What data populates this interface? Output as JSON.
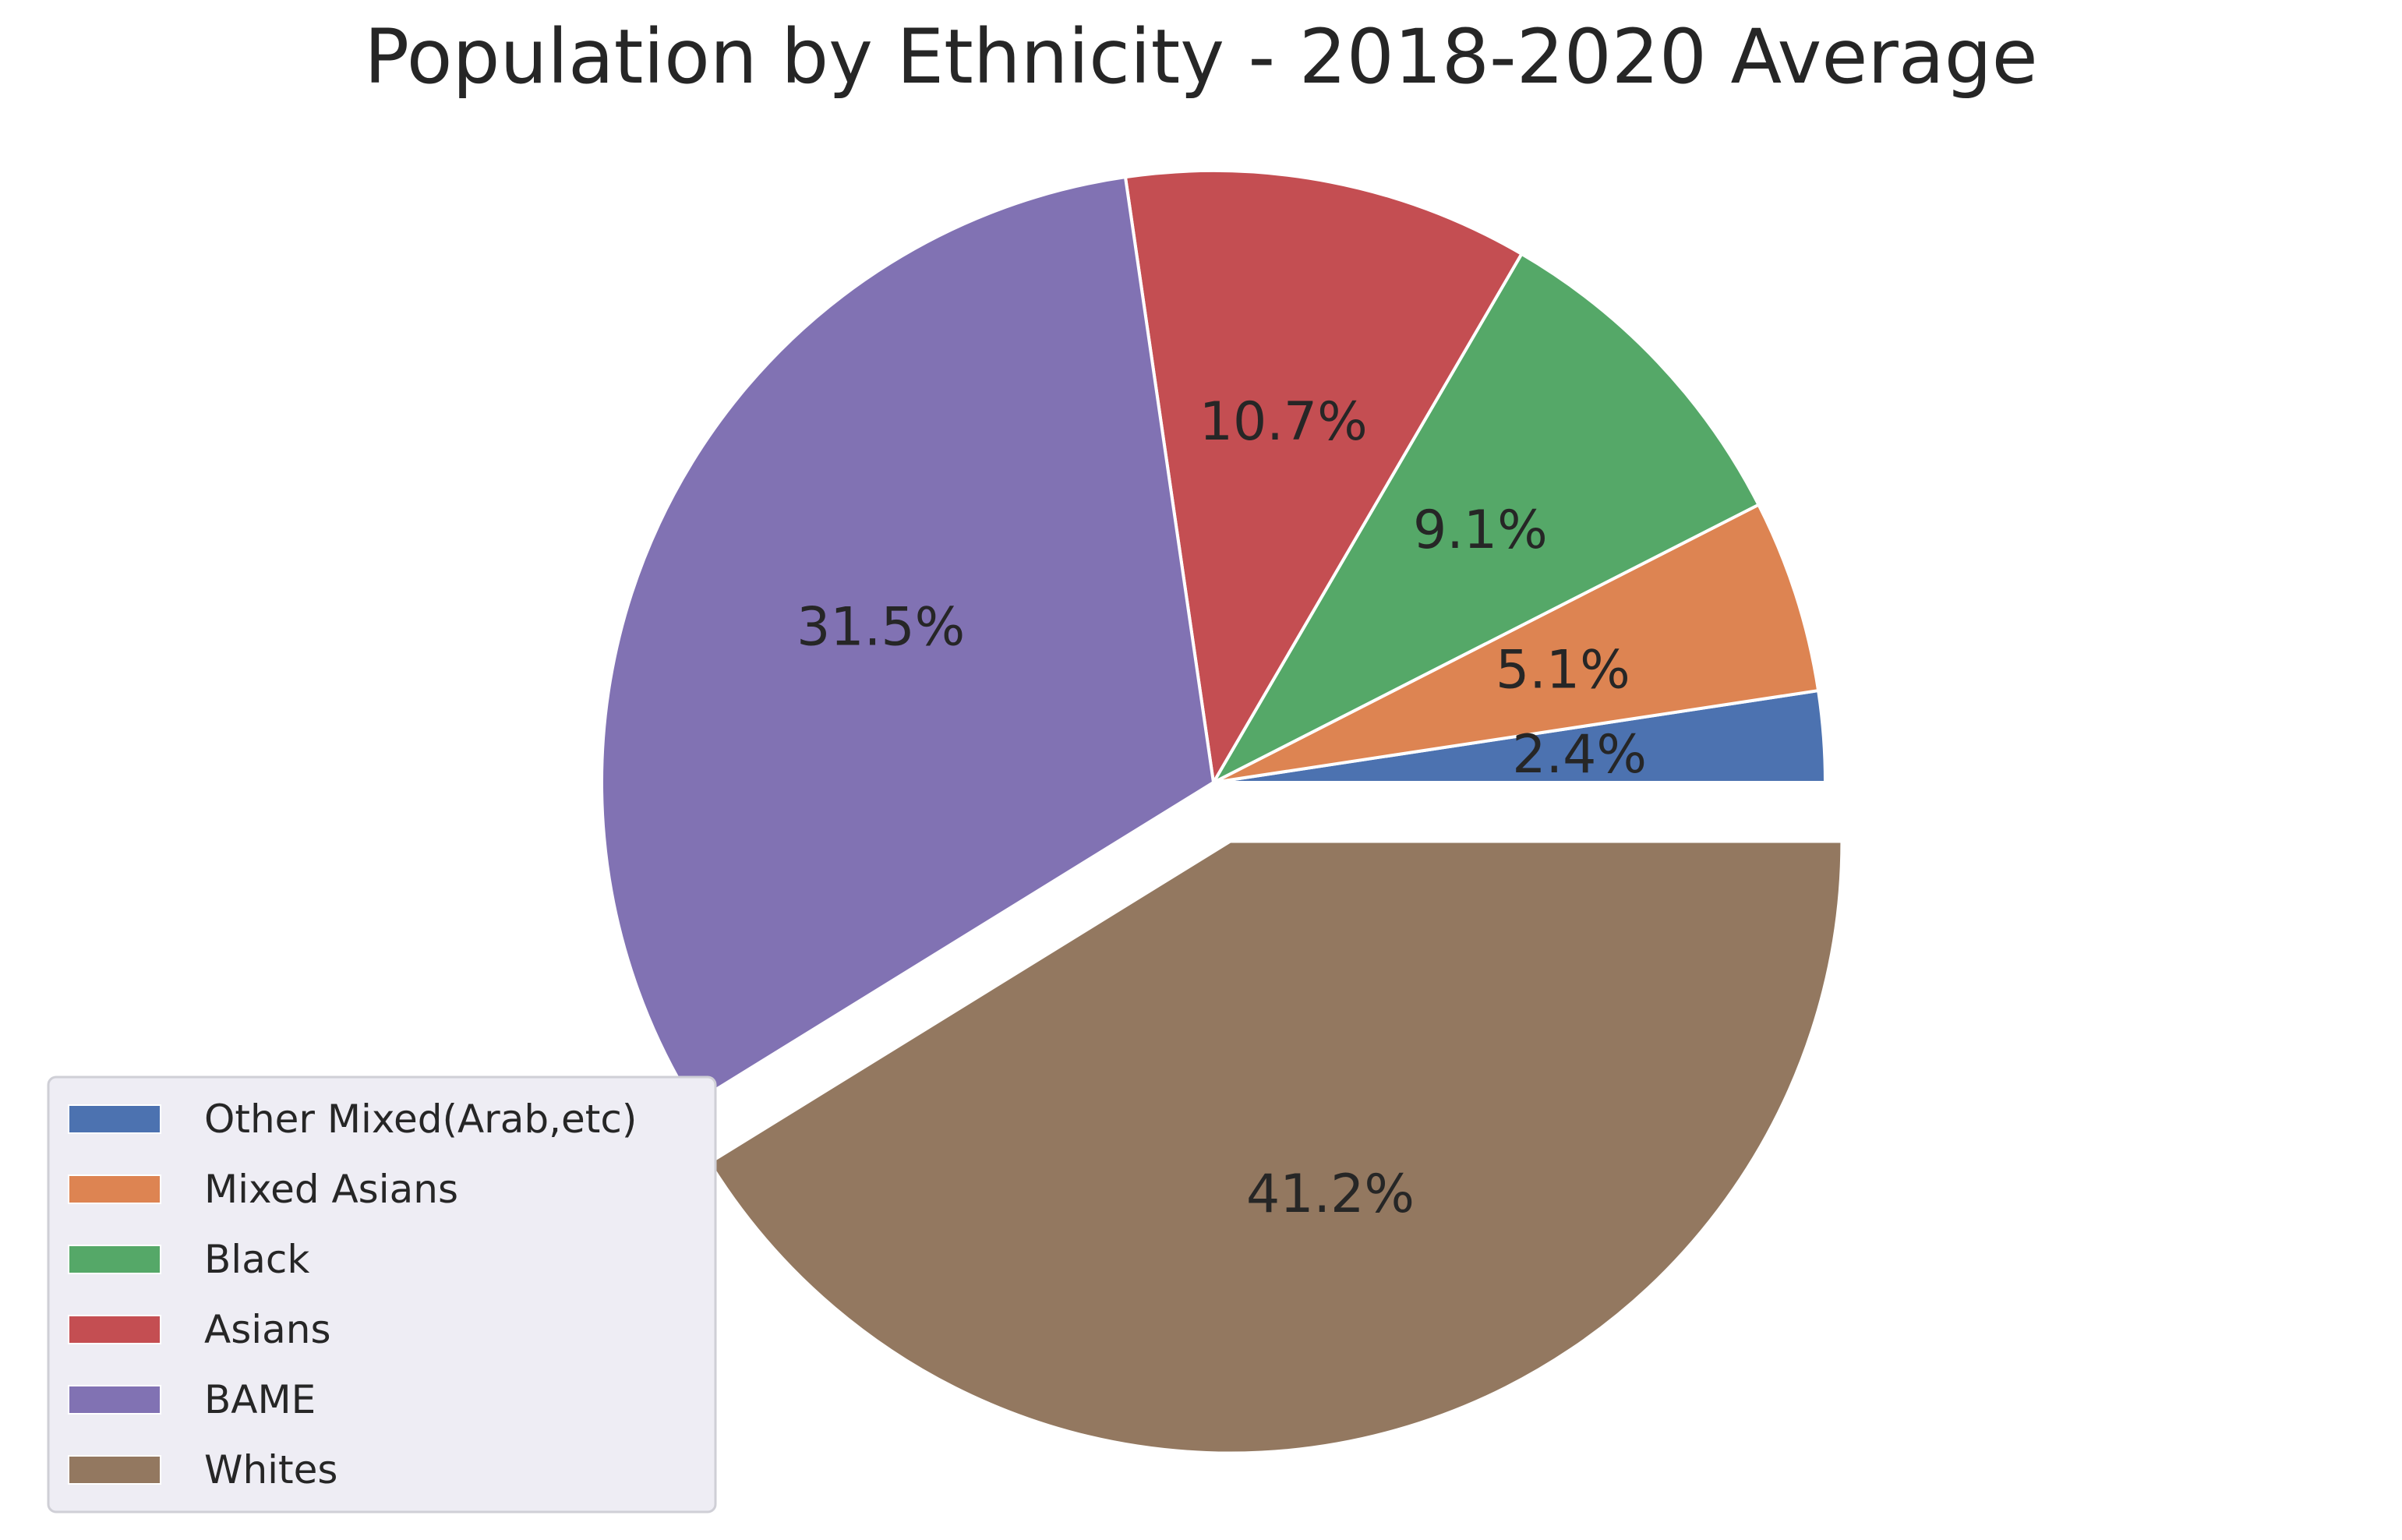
{
  "chart_data": {
    "type": "pie",
    "title": "Population by Ethnicity - 2018-2020 Average",
    "slices": [
      {
        "label": "Other Mixed(Arab,etc)",
        "value": 2.4,
        "pct_label": "2.4%",
        "color": "#4c72b0"
      },
      {
        "label": "Mixed Asians",
        "value": 5.1,
        "pct_label": "5.1%",
        "color": "#dd8452"
      },
      {
        "label": "Black",
        "value": 9.1,
        "pct_label": "9.1%",
        "color": "#55a868"
      },
      {
        "label": "Asians",
        "value": 10.7,
        "pct_label": "10.7%",
        "color": "#c44e52"
      },
      {
        "label": "BAME",
        "value": 31.5,
        "pct_label": "31.5%",
        "color": "#8172b3"
      },
      {
        "label": "Whites",
        "value": 41.2,
        "pct_label": "41.2%",
        "color": "#937860",
        "exploded": true
      }
    ],
    "start_angle": 0,
    "direction": "counterclockwise",
    "legend": {
      "placement": "lower-left"
    },
    "colors": {
      "edge": "#ffffff",
      "legend_bg": "#eeedf4",
      "legend_border": "#cfcfd6",
      "text": "#262626"
    }
  }
}
